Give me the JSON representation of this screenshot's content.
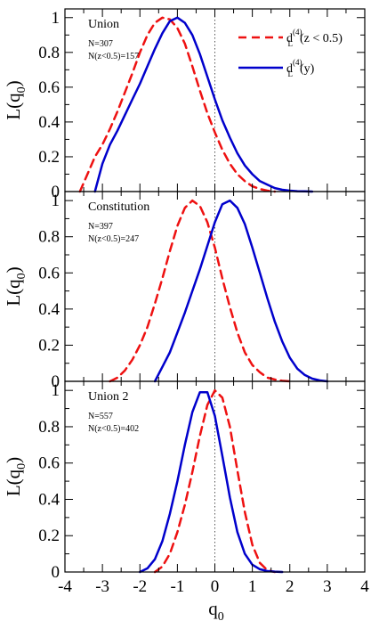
{
  "chart_data": {
    "type": "line",
    "xlabel": "q",
    "xlabel_sub": "0",
    "ylabel": "L(q",
    "ylabel_sub": "0",
    "ylabel_close": ")",
    "xlim": [
      -4,
      4
    ],
    "ylim": [
      0,
      1.05
    ],
    "xticks": [
      -4,
      -3,
      -2,
      -1,
      0,
      1,
      2,
      3,
      4
    ],
    "xtick_labels": [
      "-4",
      "-3",
      "-2",
      "-1",
      "0",
      "1",
      "2",
      "3",
      "4"
    ],
    "yticks": [
      0,
      0.2,
      0.4,
      0.6,
      0.8,
      1
    ],
    "ytick_labels": [
      "0",
      "0.2",
      "0.4",
      "0.6",
      "0.8",
      "1"
    ],
    "reference_line_x": 0,
    "grid": false,
    "legend_position": "top-right",
    "legend": [
      {
        "series": "z_cut",
        "main": "d",
        "sub": "L",
        "sup": "(4)",
        "tail": "(z < 0.5)",
        "color": "#ee1111",
        "style": "dashed"
      },
      {
        "series": "y",
        "main": "d",
        "sub": "L",
        "sup": "(4)",
        "tail": "(y)",
        "color": "#0000cc",
        "style": "solid"
      }
    ],
    "panels": [
      {
        "name": "Union",
        "notes": [
          "N=307",
          "N(z<0.5)=157"
        ],
        "series": [
          {
            "id": "z_cut",
            "color": "#ee1111",
            "style": "dashed",
            "x": [
              -3.6,
              -3.4,
              -3.2,
              -3.0,
              -2.8,
              -2.6,
              -2.4,
              -2.2,
              -2.0,
              -1.8,
              -1.6,
              -1.4,
              -1.2,
              -1.0,
              -0.8,
              -0.6,
              -0.4,
              -0.2,
              0.0,
              0.2,
              0.4,
              0.6,
              0.8,
              1.0,
              1.2,
              1.4,
              1.6
            ],
            "y": [
              0.0,
              0.1,
              0.2,
              0.27,
              0.36,
              0.46,
              0.57,
              0.68,
              0.8,
              0.9,
              0.97,
              1.0,
              0.99,
              0.94,
              0.85,
              0.72,
              0.58,
              0.45,
              0.34,
              0.24,
              0.16,
              0.1,
              0.06,
              0.03,
              0.015,
              0.005,
              0.0
            ]
          },
          {
            "id": "y",
            "color": "#0000cc",
            "style": "solid",
            "x": [
              -3.2,
              -3.0,
              -2.8,
              -2.6,
              -2.4,
              -2.2,
              -2.0,
              -1.8,
              -1.6,
              -1.4,
              -1.2,
              -1.0,
              -0.8,
              -0.6,
              -0.4,
              -0.2,
              0.0,
              0.2,
              0.4,
              0.6,
              0.8,
              1.0,
              1.2,
              1.4,
              1.6,
              1.8,
              2.0,
              2.2,
              2.4,
              2.6
            ],
            "y": [
              0.0,
              0.16,
              0.27,
              0.35,
              0.44,
              0.53,
              0.62,
              0.72,
              0.82,
              0.91,
              0.98,
              1.0,
              0.97,
              0.9,
              0.79,
              0.66,
              0.53,
              0.41,
              0.31,
              0.22,
              0.15,
              0.1,
              0.06,
              0.04,
              0.02,
              0.01,
              0.005,
              0.002,
              0.001,
              0.0
            ]
          }
        ]
      },
      {
        "name": "Constitution",
        "notes": [
          "N=397",
          "N(z<0.5)=247"
        ],
        "series": [
          {
            "id": "z_cut",
            "color": "#ee1111",
            "style": "dashed",
            "x": [
              -2.8,
              -2.6,
              -2.4,
              -2.2,
              -2.0,
              -1.8,
              -1.6,
              -1.4,
              -1.2,
              -1.0,
              -0.8,
              -0.6,
              -0.4,
              -0.2,
              0.0,
              0.2,
              0.4,
              0.6,
              0.8,
              1.0,
              1.2,
              1.4,
              1.6,
              1.8,
              2.0
            ],
            "y": [
              0.0,
              0.02,
              0.06,
              0.12,
              0.2,
              0.3,
              0.43,
              0.57,
              0.72,
              0.86,
              0.96,
              1.0,
              0.97,
              0.88,
              0.74,
              0.57,
              0.41,
              0.27,
              0.16,
              0.09,
              0.05,
              0.02,
              0.01,
              0.003,
              0.0
            ]
          },
          {
            "id": "y",
            "color": "#0000cc",
            "style": "solid",
            "x": [
              -1.6,
              -1.4,
              -1.2,
              -1.0,
              -0.8,
              -0.6,
              -0.4,
              -0.2,
              0.0,
              0.2,
              0.4,
              0.6,
              0.8,
              1.0,
              1.2,
              1.4,
              1.6,
              1.8,
              2.0,
              2.2,
              2.4,
              2.6,
              2.8,
              3.0
            ],
            "y": [
              0.0,
              0.08,
              0.16,
              0.27,
              0.38,
              0.5,
              0.62,
              0.75,
              0.88,
              0.98,
              1.0,
              0.96,
              0.87,
              0.74,
              0.6,
              0.46,
              0.33,
              0.22,
              0.13,
              0.07,
              0.035,
              0.015,
              0.005,
              0.0
            ]
          }
        ]
      },
      {
        "name": "Union 2",
        "notes": [
          "N=557",
          "N(z<0.5)=402"
        ],
        "series": [
          {
            "id": "z_cut",
            "color": "#ee1111",
            "style": "dashed",
            "x": [
              -1.6,
              -1.4,
              -1.2,
              -1.0,
              -0.8,
              -0.6,
              -0.4,
              -0.2,
              0.0,
              0.2,
              0.4,
              0.6,
              0.8,
              1.0,
              1.2,
              1.4,
              1.6
            ],
            "y": [
              0.0,
              0.03,
              0.1,
              0.22,
              0.37,
              0.55,
              0.75,
              0.92,
              1.0,
              0.96,
              0.8,
              0.56,
              0.33,
              0.15,
              0.05,
              0.01,
              0.0
            ]
          },
          {
            "id": "y",
            "color": "#0000cc",
            "style": "solid",
            "x": [
              -2.0,
              -1.8,
              -1.6,
              -1.4,
              -1.2,
              -1.0,
              -0.8,
              -0.6,
              -0.4,
              -0.2,
              0.0,
              0.2,
              0.4,
              0.6,
              0.8,
              1.0,
              1.2,
              1.4,
              1.6,
              1.8
            ],
            "y": [
              0.0,
              0.02,
              0.07,
              0.17,
              0.32,
              0.5,
              0.7,
              0.88,
              0.99,
              0.99,
              0.86,
              0.64,
              0.41,
              0.22,
              0.1,
              0.04,
              0.015,
              0.005,
              0.002,
              0.0
            ]
          }
        ]
      }
    ]
  }
}
